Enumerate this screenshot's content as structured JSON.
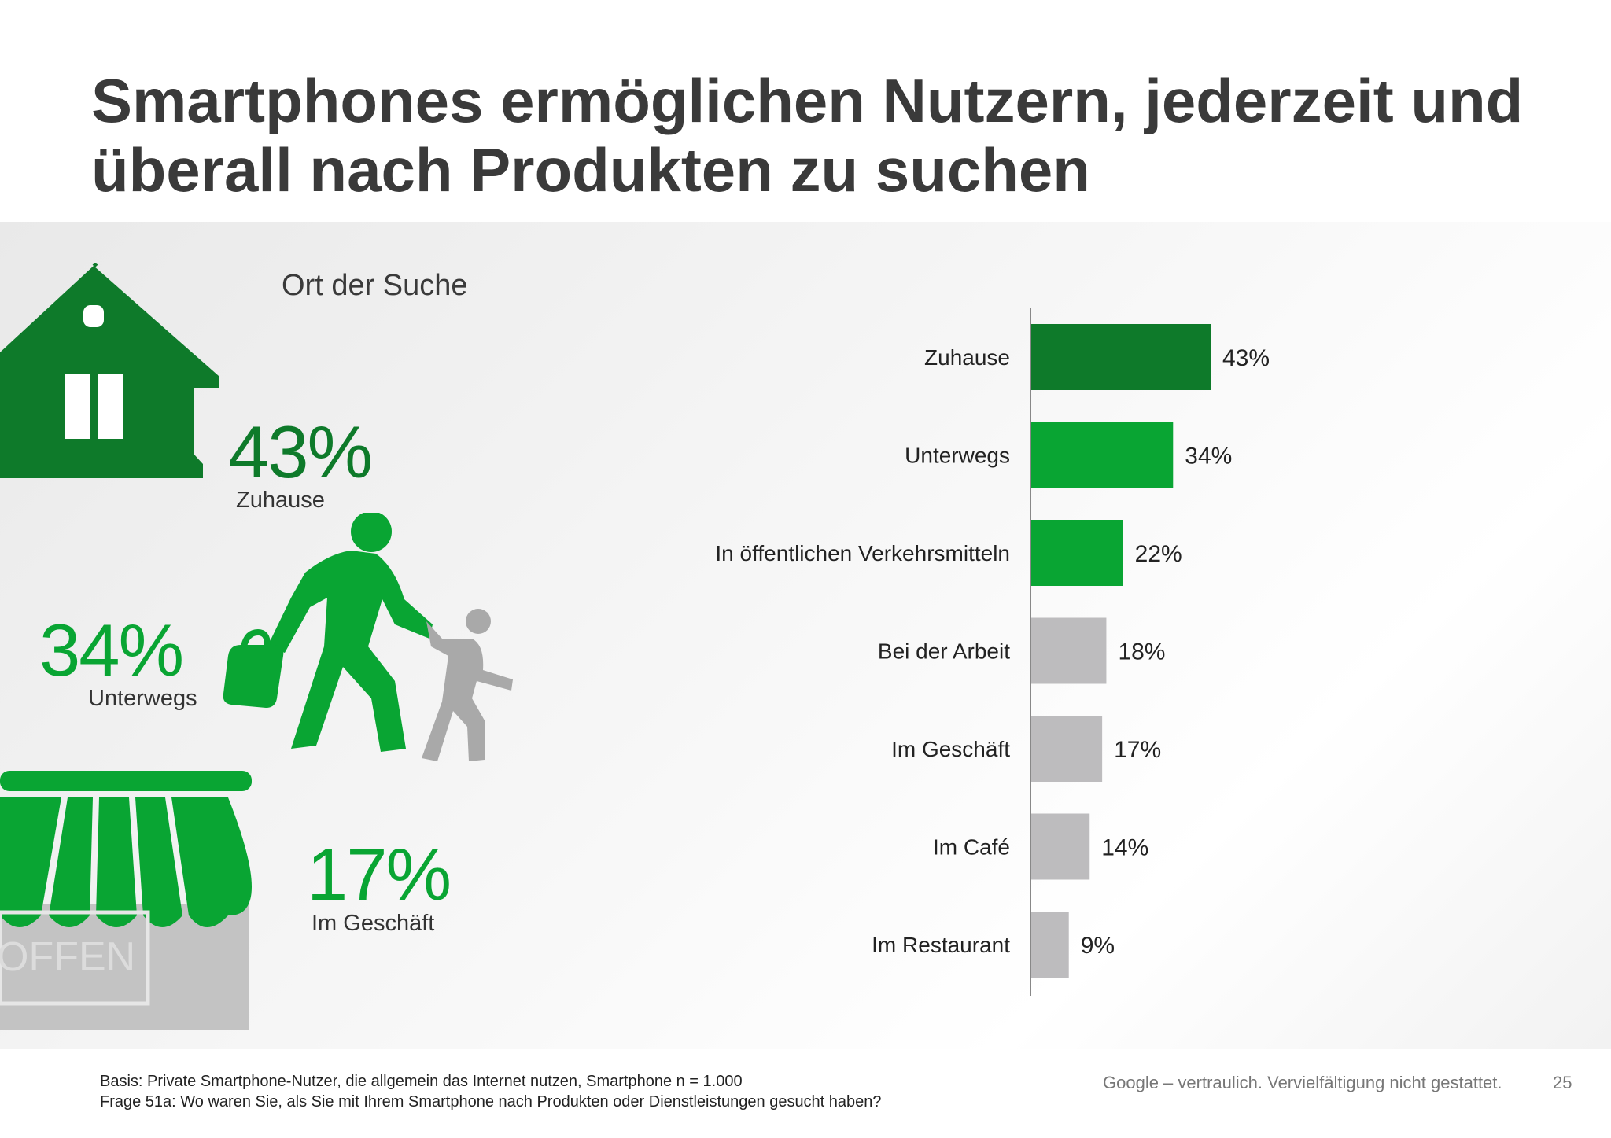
{
  "slide": {
    "title": "Smartphones ermöglichen Nutzern, jederzeit und überall nach Produkten zu suchen",
    "subtitle": "Ort der Suche",
    "highlights": {
      "home": {
        "value": "43%",
        "label": "Zuhause"
      },
      "onthego": {
        "value": "34%",
        "label": "Unterwegs"
      },
      "store": {
        "value": "17%",
        "label": "Im Geschäft"
      }
    },
    "store_sign": "OFFEN",
    "footer": {
      "basis": "Basis: Private Smartphone-Nutzer, die allgemein das Internet nutzen, Smartphone n = 1.000",
      "question": "Frage 51a:  Wo waren Sie, als Sie mit Ihrem Smartphone nach Produkten oder Dienstleistungen gesucht haben?",
      "confidential": "Google – vertraulich. Vervielfältigung nicht gestattet.",
      "page": "25"
    },
    "colors": {
      "dark_green": "#0e7a2a",
      "green": "#09a533",
      "gray": "#bdbcbe"
    },
    "icons": [
      "house-icon",
      "walking-adult-child-icon",
      "storefront-icon"
    ]
  },
  "chart_data": {
    "type": "bar",
    "orientation": "horizontal",
    "categories": [
      "Zuhause",
      "Unterwegs",
      "In öffentlichen Verkehrsmitteln",
      "Bei der Arbeit",
      "Im Geschäft",
      "Im Café",
      "Im Restaurant"
    ],
    "values": [
      43,
      34,
      22,
      18,
      17,
      14,
      9
    ],
    "labels": [
      "43%",
      "34%",
      "22%",
      "18%",
      "17%",
      "14%",
      "9%"
    ],
    "bar_colors": [
      "#0e7a2a",
      "#09a533",
      "#09a533",
      "#bdbcbe",
      "#bdbcbe",
      "#bdbcbe",
      "#bdbcbe"
    ],
    "grid": false,
    "legend": "none"
  }
}
